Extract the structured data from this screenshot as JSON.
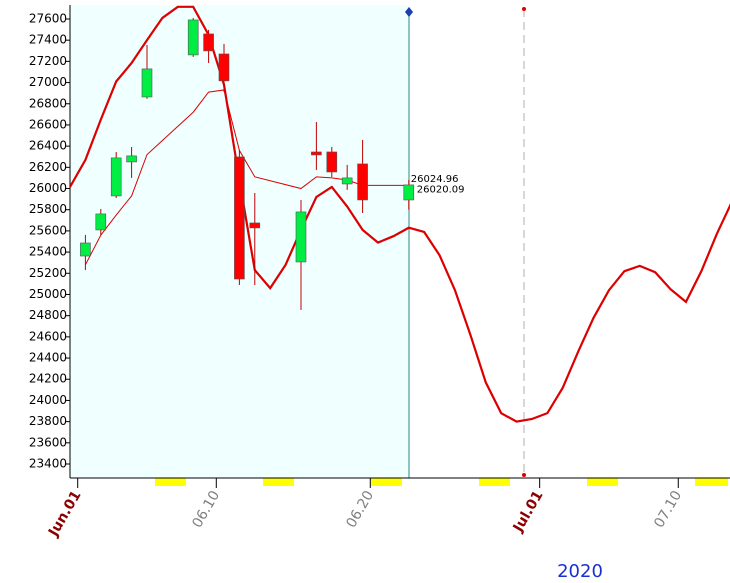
{
  "chart_data": {
    "type": "candlestick",
    "x": [
      1,
      2,
      3,
      4,
      5,
      8,
      9,
      10,
      11,
      12,
      15,
      16,
      17,
      18,
      19,
      22
    ],
    "open": [
      25363,
      25609,
      25930,
      26251,
      26864,
      27261,
      27459,
      27270,
      26298,
      25675,
      25307,
      26345,
      26345,
      26043,
      26232,
      25892
    ],
    "high": [
      25562,
      25807,
      26345,
      26392,
      27355,
      27610,
      27497,
      27365,
      26364,
      25958,
      25892,
      26628,
      26392,
      26223,
      26459,
      26081
    ],
    "low": [
      25231,
      25562,
      25911,
      26100,
      26846,
      27242,
      27185,
      26912,
      25090,
      25090,
      24854,
      26175,
      26109,
      25987,
      25769,
      25800
    ],
    "close": [
      25486,
      25760,
      26289,
      26308,
      27129,
      27591,
      27299,
      27016,
      25146,
      25628,
      25779,
      26317,
      26156,
      26100,
      25892,
      26034
    ],
    "up_color": "#00ee44",
    "down_color": "#ff0000",
    "lines": [
      {
        "color": "#dd0000",
        "width": 1,
        "x": [
          1,
          2,
          3,
          4,
          5,
          8,
          9,
          10,
          11,
          12,
          15,
          16,
          17,
          18,
          19,
          22
        ],
        "values": [
          25280,
          25560,
          25750,
          25930,
          26320,
          26720,
          26910,
          26930,
          26360,
          26110,
          26000,
          26110,
          26100,
          26080,
          26030,
          26030
        ]
      },
      {
        "color": "#dd0000",
        "width": 2.2,
        "x": [
          0,
          1,
          2,
          3,
          4,
          5,
          6,
          7,
          8,
          9,
          10,
          11,
          12,
          13,
          14,
          15,
          16,
          17,
          18,
          19,
          20,
          21,
          22,
          23,
          24,
          25,
          26,
          27,
          28,
          29,
          30,
          31,
          32,
          33,
          34,
          35,
          36,
          37,
          38,
          39,
          40,
          41,
          42,
          43
        ],
        "values": [
          26015,
          26270,
          26650,
          27010,
          27185,
          27400,
          27610,
          27715,
          27715,
          27450,
          26980,
          26080,
          25230,
          25060,
          25280,
          25610,
          25920,
          26015,
          25830,
          25610,
          25490,
          25550,
          25630,
          25590,
          25370,
          25040,
          24620,
          24170,
          23880,
          23800,
          23825,
          23880,
          24120,
          24460,
          24780,
          25040,
          25220,
          25270,
          25210,
          25050,
          24930,
          25220,
          25570,
          25880
        ]
      }
    ],
    "annotations": [
      {
        "value": 26024.96,
        "label": "26024.96"
      },
      {
        "value": 26020.09,
        "label": "26020.09"
      }
    ],
    "xlim": [
      0,
      42.86
    ],
    "ylim": [
      23268,
      27732
    ],
    "yticks": [
      23400,
      23600,
      23800,
      24000,
      24200,
      24400,
      24600,
      24800,
      25000,
      25200,
      25400,
      25600,
      25800,
      26000,
      26200,
      26400,
      26600,
      26800,
      27000,
      27200,
      27400,
      27600
    ],
    "xticks": [
      {
        "value": 1,
        "label": "Jun.01"
      },
      {
        "value": 10,
        "label": "06.10"
      },
      {
        "value": 20,
        "label": "06.20"
      },
      {
        "value": 31,
        "label": "Jul.01"
      },
      {
        "value": 40,
        "label": "07.10"
      }
    ],
    "xtick_colors": [
      "#8b0000",
      "#808080",
      "#808080",
      "#8b0000",
      "#808080"
    ],
    "year_label": "2020"
  }
}
